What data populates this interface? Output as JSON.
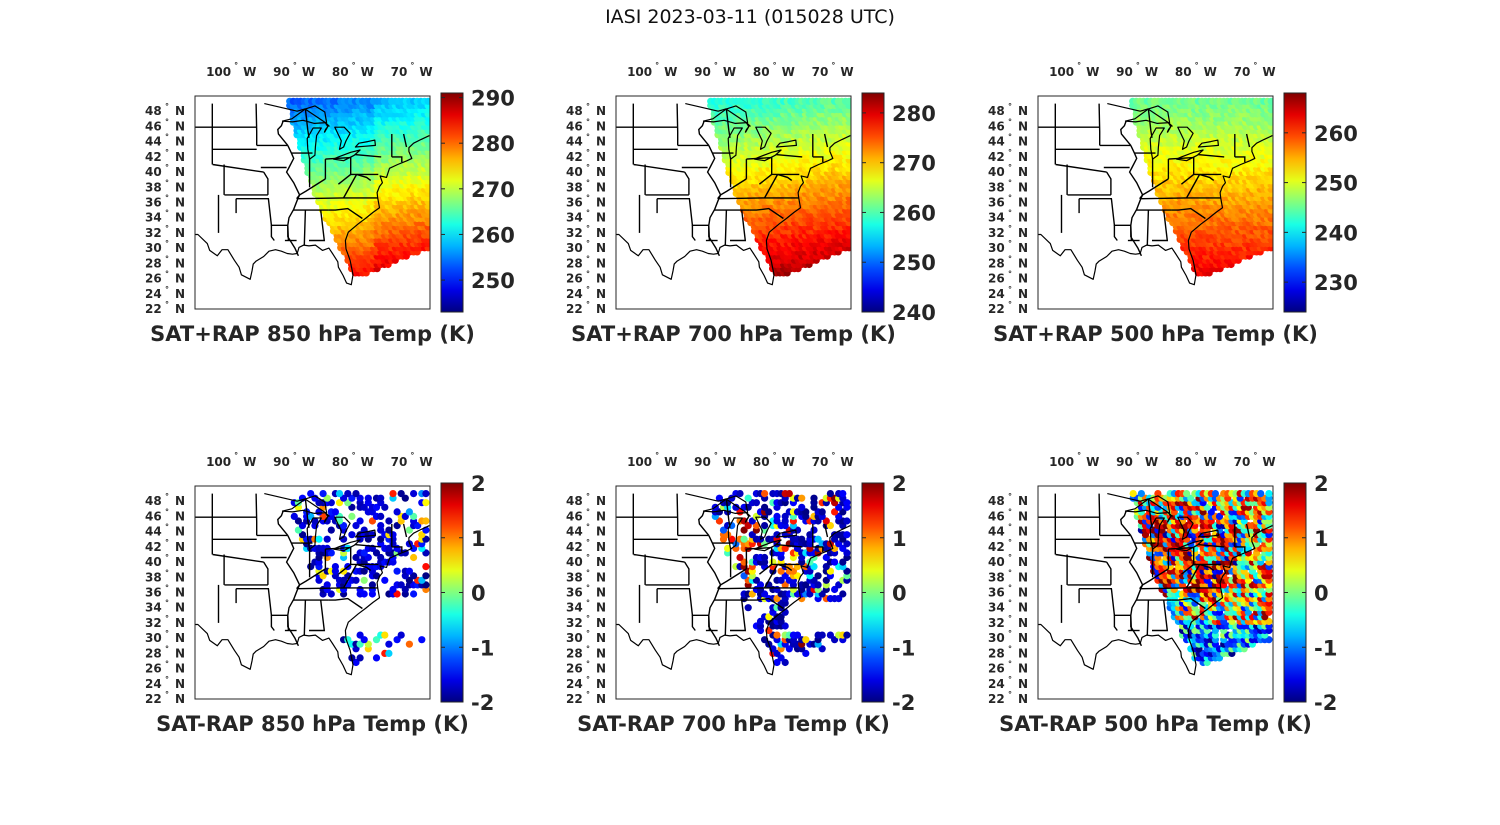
{
  "figure": {
    "title": "IASI 2023-03-11 (015028 UTC)"
  },
  "axes": {
    "lon_ticks": [
      {
        "value": -100,
        "num": "100",
        "hemi": "W"
      },
      {
        "value": -90,
        "num": "90",
        "hemi": "W"
      },
      {
        "value": -80,
        "num": "80",
        "hemi": "W"
      },
      {
        "value": -70,
        "num": "70",
        "hemi": "W"
      }
    ],
    "lat_ticks": [
      {
        "value": 22,
        "num": "22",
        "hemi": "N"
      },
      {
        "value": 24,
        "num": "24",
        "hemi": "N"
      },
      {
        "value": 26,
        "num": "26",
        "hemi": "N"
      },
      {
        "value": 28,
        "num": "28",
        "hemi": "N"
      },
      {
        "value": 30,
        "num": "30",
        "hemi": "N"
      },
      {
        "value": 32,
        "num": "32",
        "hemi": "N"
      },
      {
        "value": 34,
        "num": "34",
        "hemi": "N"
      },
      {
        "value": 36,
        "num": "36",
        "hemi": "N"
      },
      {
        "value": 38,
        "num": "38",
        "hemi": "N"
      },
      {
        "value": 40,
        "num": "40",
        "hemi": "N"
      },
      {
        "value": 42,
        "num": "42",
        "hemi": "N"
      },
      {
        "value": 44,
        "num": "44",
        "hemi": "N"
      },
      {
        "value": 46,
        "num": "46",
        "hemi": "N"
      },
      {
        "value": 48,
        "num": "48",
        "hemi": "N"
      }
    ],
    "lon_range": [
      -107,
      -67
    ],
    "lat_range": [
      22,
      50
    ],
    "degree_symbol": "°"
  },
  "chart_data": [
    {
      "type": "heatmap",
      "title": "SAT+RAP 850 hPa Temp (K)",
      "clim": [
        243,
        291
      ],
      "colorbar_ticks": [
        "290",
        "280",
        "270",
        "260",
        "250"
      ],
      "colorbar_values": [
        290,
        280,
        270,
        260,
        250
      ],
      "field": "sum850",
      "colormap": "jet"
    },
    {
      "type": "heatmap",
      "title": "SAT+RAP 700 hPa Temp (K)",
      "clim": [
        240,
        284
      ],
      "colorbar_ticks": [
        "280",
        "270",
        "260",
        "250",
        "240"
      ],
      "colorbar_values": [
        280,
        270,
        260,
        250,
        240
      ],
      "field": "sum700",
      "colormap": "jet"
    },
    {
      "type": "heatmap",
      "title": "SAT+RAP 500 hPa Temp (K)",
      "clim": [
        224,
        268
      ],
      "colorbar_ticks": [
        "260",
        "250",
        "240",
        "230"
      ],
      "colorbar_values": [
        260,
        250,
        240,
        230
      ],
      "field": "sum500",
      "colormap": "jet"
    },
    {
      "type": "scatter",
      "title": "SAT-RAP 850 hPa Temp (K)",
      "clim": [
        -2,
        2
      ],
      "colorbar_ticks": [
        "2",
        "1",
        "0",
        "-1",
        "-2"
      ],
      "colorbar_values": [
        2,
        1,
        0,
        -1,
        -2
      ],
      "field": "diff850",
      "colormap": "jet"
    },
    {
      "type": "scatter",
      "title": "SAT-RAP 700 hPa Temp (K)",
      "clim": [
        -2,
        2
      ],
      "colorbar_ticks": [
        "2",
        "1",
        "0",
        "-1",
        "-2"
      ],
      "colorbar_values": [
        2,
        1,
        0,
        -1,
        -2
      ],
      "field": "diff700",
      "colormap": "jet"
    },
    {
      "type": "scatter",
      "title": "SAT-RAP 500 hPa Temp (K)",
      "clim": [
        -2,
        2
      ],
      "colorbar_ticks": [
        "2",
        "1",
        "0",
        "-1",
        "-2"
      ],
      "colorbar_values": [
        2,
        1,
        0,
        -1,
        -2
      ],
      "field": "diff500",
      "colormap": "jet"
    }
  ]
}
